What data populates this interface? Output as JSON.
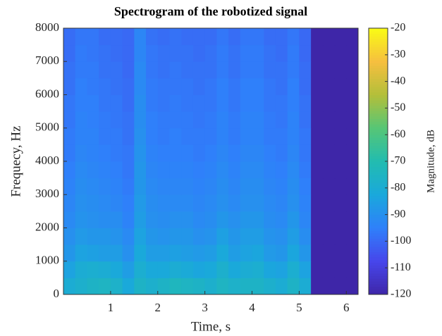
{
  "chart_data": {
    "type": "heatmap",
    "title": "Spectrogram of the robotized signal",
    "x_label": "Time, s",
    "y_label": "Frequecy, Hz",
    "colorbar_label": "Magnitude, dB",
    "x": [
      0.125,
      0.375,
      0.625,
      0.875,
      1.125,
      1.375,
      1.625,
      1.875,
      2.125,
      2.375,
      2.625,
      2.875,
      3.125,
      3.375,
      3.625,
      3.875,
      4.125,
      4.375,
      4.625,
      4.875,
      5.125,
      5.375,
      5.625,
      5.875,
      6.125
    ],
    "y": [
      250,
      750,
      1250,
      1750,
      2250,
      2750,
      3250,
      3750,
      4250,
      4750,
      5250,
      5750,
      6250,
      6750,
      7250,
      7750
    ],
    "z": [
      [
        -80,
        -78,
        -76,
        -75,
        -77,
        -82,
        -76,
        -78,
        -76,
        -74,
        -75,
        -76,
        -78,
        -75,
        -77,
        -76,
        -76,
        -78,
        -80,
        -76,
        -80,
        -120,
        -120,
        -120,
        -120
      ],
      [
        -84,
        -80,
        -79,
        -80,
        -82,
        -86,
        -79,
        -82,
        -82,
        -80,
        -81,
        -83,
        -82,
        -78,
        -82,
        -80,
        -79,
        -83,
        -84,
        -79,
        -84,
        -120,
        -120,
        -120,
        -120
      ],
      [
        -88,
        -84,
        -85,
        -86,
        -86,
        -90,
        -82,
        -86,
        -86,
        -85,
        -86,
        -87,
        -86,
        -82,
        -86,
        -84,
        -83,
        -87,
        -88,
        -83,
        -88,
        -120,
        -120,
        -120,
        -120
      ],
      [
        -90,
        -87,
        -88,
        -88,
        -89,
        -92,
        -84,
        -88,
        -89,
        -88,
        -88,
        -90,
        -89,
        -85,
        -88,
        -86,
        -86,
        -89,
        -90,
        -86,
        -91,
        -120,
        -120,
        -120,
        -120
      ],
      [
        -92,
        -89,
        -90,
        -91,
        -91,
        -94,
        -86,
        -90,
        -91,
        -90,
        -90,
        -92,
        -91,
        -88,
        -90,
        -88,
        -88,
        -91,
        -92,
        -88,
        -93,
        -120,
        -120,
        -120,
        -120
      ],
      [
        -93,
        -90,
        -91,
        -92,
        -93,
        -95,
        -87,
        -91,
        -92,
        -92,
        -92,
        -93,
        -92,
        -90,
        -92,
        -90,
        -90,
        -92,
        -93,
        -90,
        -94,
        -120,
        -120,
        -120,
        -120
      ],
      [
        -94,
        -91,
        -92,
        -93,
        -94,
        -96,
        -88,
        -92,
        -93,
        -93,
        -93,
        -94,
        -93,
        -91,
        -93,
        -91,
        -91,
        -93,
        -94,
        -91,
        -95,
        -120,
        -120,
        -120,
        -120
      ],
      [
        -95,
        -92,
        -93,
        -94,
        -95,
        -97,
        -88,
        -93,
        -94,
        -94,
        -94,
        -95,
        -94,
        -92,
        -94,
        -92,
        -92,
        -94,
        -95,
        -92,
        -96,
        -120,
        -120,
        -120,
        -120
      ],
      [
        -96,
        -93,
        -94,
        -95,
        -96,
        -97,
        -89,
        -94,
        -95,
        -95,
        -95,
        -96,
        -95,
        -93,
        -95,
        -93,
        -93,
        -95,
        -96,
        -93,
        -97,
        -120,
        -120,
        -120,
        -120
      ],
      [
        -96,
        -94,
        -94,
        -96,
        -96,
        -98,
        -90,
        -95,
        -96,
        -95,
        -96,
        -96,
        -96,
        -94,
        -96,
        -94,
        -94,
        -96,
        -96,
        -94,
        -97,
        -120,
        -120,
        -120,
        -120
      ],
      [
        -97,
        -94,
        -95,
        -96,
        -97,
        -98,
        -91,
        -95,
        -96,
        -96,
        -96,
        -97,
        -96,
        -94,
        -96,
        -94,
        -94,
        -96,
        -97,
        -94,
        -98,
        -120,
        -120,
        -120,
        -120
      ],
      [
        -97,
        -95,
        -95,
        -97,
        -97,
        -99,
        -91,
        -96,
        -97,
        -96,
        -97,
        -97,
        -97,
        -95,
        -97,
        -95,
        -95,
        -97,
        -97,
        -95,
        -98,
        -120,
        -120,
        -120,
        -120
      ],
      [
        -98,
        -95,
        -96,
        -97,
        -98,
        -99,
        -92,
        -96,
        -97,
        -97,
        -97,
        -98,
        -97,
        -95,
        -97,
        -95,
        -95,
        -97,
        -98,
        -95,
        -99,
        -120,
        -120,
        -120,
        -120
      ],
      [
        -98,
        -96,
        -96,
        -98,
        -98,
        -100,
        -92,
        -97,
        -98,
        -97,
        -98,
        -98,
        -98,
        -96,
        -98,
        -96,
        -96,
        -98,
        -98,
        -96,
        -99,
        -120,
        -120,
        -120,
        -120
      ],
      [
        -99,
        -96,
        -97,
        -98,
        -99,
        -100,
        -93,
        -97,
        -98,
        -98,
        -98,
        -99,
        -98,
        -96,
        -98,
        -96,
        -96,
        -98,
        -99,
        -96,
        -100,
        -120,
        -120,
        -120,
        -120
      ],
      [
        -99,
        -97,
        -97,
        -99,
        -99,
        -100,
        -93,
        -98,
        -99,
        -98,
        -99,
        -99,
        -99,
        -97,
        -99,
        -97,
        -97,
        -99,
        -99,
        -97,
        -100,
        -120,
        -120,
        -120,
        -120
      ]
    ],
    "xlim": [
      0,
      6.25
    ],
    "ylim": [
      0,
      8000
    ],
    "xticks": [
      1,
      2,
      3,
      4,
      5,
      6
    ],
    "yticks": [
      0,
      1000,
      2000,
      3000,
      4000,
      5000,
      6000,
      7000,
      8000
    ],
    "clim": [
      -120,
      -20
    ],
    "cticks": [
      -120,
      -110,
      -100,
      -90,
      -80,
      -70,
      -60,
      -50,
      -40,
      -30,
      -20
    ],
    "colormap": [
      "#3e26a8",
      "#4746eb",
      "#2f80fa",
      "#1aa8dc",
      "#22bcb0",
      "#56c676",
      "#b3bf3a",
      "#f6bf3f",
      "#f9fb15"
    ]
  }
}
